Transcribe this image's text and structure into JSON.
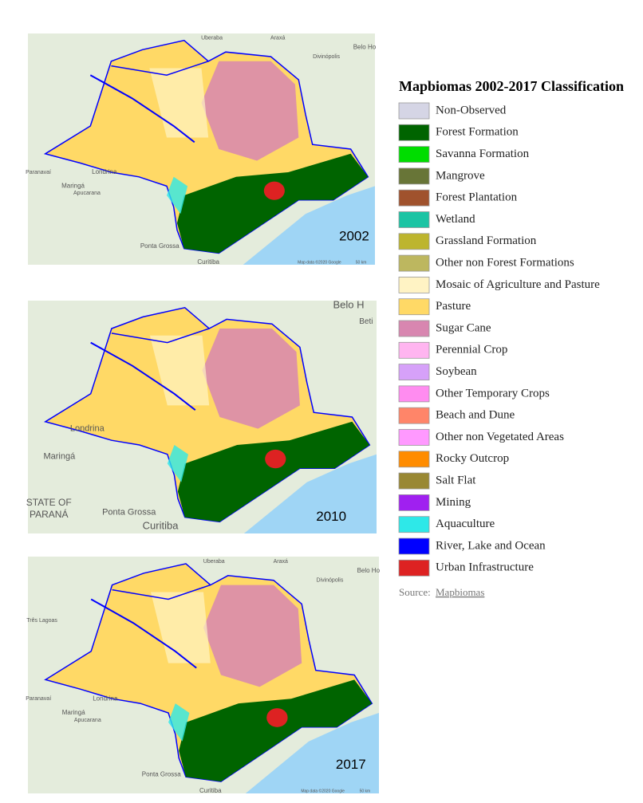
{
  "maps": [
    {
      "year": "2002",
      "labels": [
        "Uberaba",
        "Araxá",
        "Divinópolis",
        "Belo Ho",
        "Paranavaí",
        "Maringá",
        "Londrina",
        "Apucarana",
        "Ponta Grossa",
        "Curitiba",
        "Map data ©2020 Google",
        "50 km"
      ]
    },
    {
      "year": "2010",
      "labels": [
        "Belo H",
        "Beti",
        "Londrina",
        "Maringá",
        "STATE OF",
        "PARANÁ",
        "Ponta Grossa",
        "Curitiba"
      ]
    },
    {
      "year": "2017",
      "labels": [
        "Uberaba",
        "Araxá",
        "Divinópolis",
        "Belo Ho",
        "Três Lagoas",
        "Paranavaí",
        "Maringá",
        "Londrina",
        "Apucarana",
        "Ponta Grossa",
        "Curitiba",
        "Map data ©2020 Google",
        "50 km"
      ]
    }
  ],
  "legend": {
    "title": "Mapbiomas 2002-2017 Classification",
    "items": [
      {
        "label": "Non-Observed",
        "color": "#d5d5e5"
      },
      {
        "label": "Forest Formation",
        "color": "#006400"
      },
      {
        "label": "Savanna Formation",
        "color": "#00dd00"
      },
      {
        "label": "Mangrove",
        "color": "#687537"
      },
      {
        "label": "Forest Plantation",
        "color": "#a0522d"
      },
      {
        "label": "Wetland",
        "color": "#1bc4a4"
      },
      {
        "label": "Grassland Formation",
        "color": "#bdb52e"
      },
      {
        "label": "Other non Forest Formations",
        "color": "#bdb75f"
      },
      {
        "label": "Mosaic of Agriculture and Pasture",
        "color": "#fff3c4"
      },
      {
        "label": "Pasture",
        "color": "#ffd966"
      },
      {
        "label": "Sugar Cane",
        "color": "#d886b0"
      },
      {
        "label": "Perennial Crop",
        "color": "#ffb5f0"
      },
      {
        "label": "Soybean",
        "color": "#d6a1f9"
      },
      {
        "label": "Other Temporary Crops",
        "color": "#ff8cf0"
      },
      {
        "label": "Beach and Dune",
        "color": "#ff8569"
      },
      {
        "label": "Other non Vegetated Areas",
        "color": "#ff99ff"
      },
      {
        "label": "Rocky Outcrop",
        "color": "#ff8c00"
      },
      {
        "label": "Salt Flat",
        "color": "#998833"
      },
      {
        "label": "Mining",
        "color": "#a020f0"
      },
      {
        "label": "Aquaculture",
        "color": "#2ee8e8"
      },
      {
        "label": "River, Lake and Ocean",
        "color": "#0000ff"
      },
      {
        "label": "Urban Infrastructure",
        "color": "#dd2222"
      }
    ],
    "source_prefix": "Source:",
    "source_link": "Mapbiomas"
  }
}
